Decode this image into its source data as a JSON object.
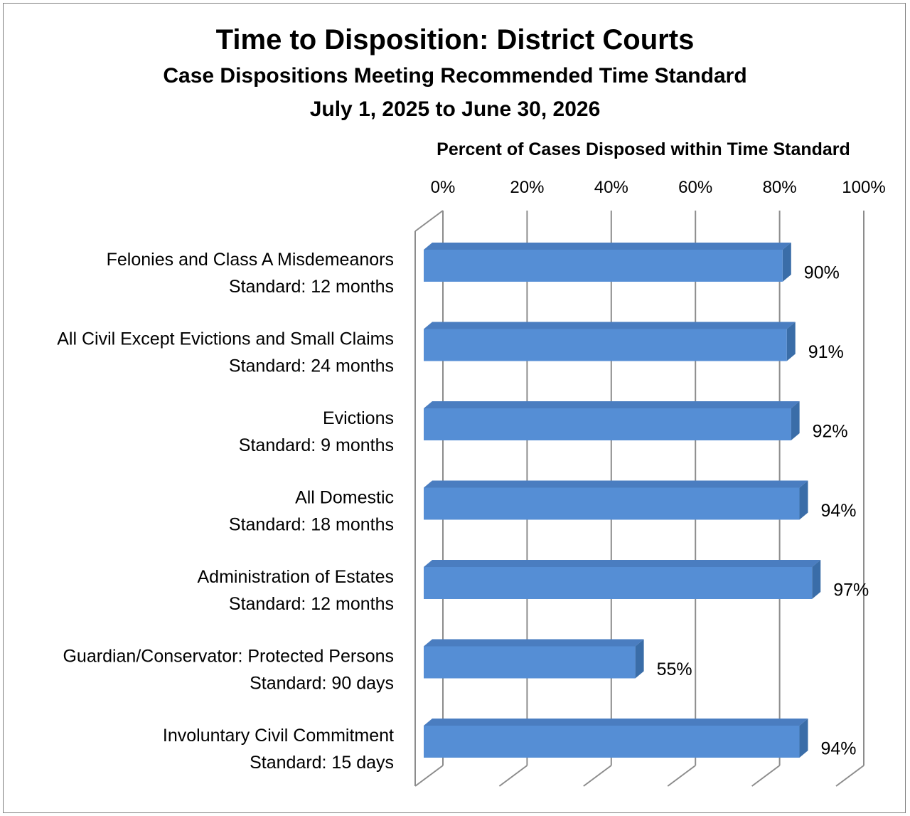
{
  "chart_data": {
    "type": "bar",
    "orientation": "horizontal",
    "title": "Time to Disposition: District Courts",
    "subtitle": "Case Dispositions Meeting Recommended Time Standard",
    "date_range": "July 1, 2025 to June 30, 2026",
    "xlabel": "Percent of Cases Disposed within Time Standard",
    "xlim": [
      0,
      100
    ],
    "x_ticks": [
      "0%",
      "20%",
      "40%",
      "60%",
      "80%",
      "100%"
    ],
    "grid": true,
    "bar_color": "#558ED5",
    "bar_side_color": "#3A6DA8",
    "categories": [
      {
        "name": "Felonies and Class A Misdemeanors",
        "standard": "Standard: 12 months"
      },
      {
        "name": "All Civil Except Evictions and Small Claims",
        "standard": "Standard: 24 months"
      },
      {
        "name": "Evictions",
        "standard": "Standard: 9 months"
      },
      {
        "name": "All Domestic",
        "standard": "Standard: 18 months"
      },
      {
        "name": "Administration of Estates",
        "standard": "Standard: 12 months"
      },
      {
        "name": "Guardian/Conservator: Protected Persons",
        "standard": "Standard: 90 days"
      },
      {
        "name": "Involuntary Civil Commitment",
        "standard": "Standard: 15 days"
      }
    ],
    "values": [
      90,
      91,
      92,
      94,
      97,
      55,
      94
    ],
    "data_labels": [
      "90%",
      "91%",
      "92%",
      "94%",
      "97%",
      "55%",
      "94%"
    ]
  }
}
